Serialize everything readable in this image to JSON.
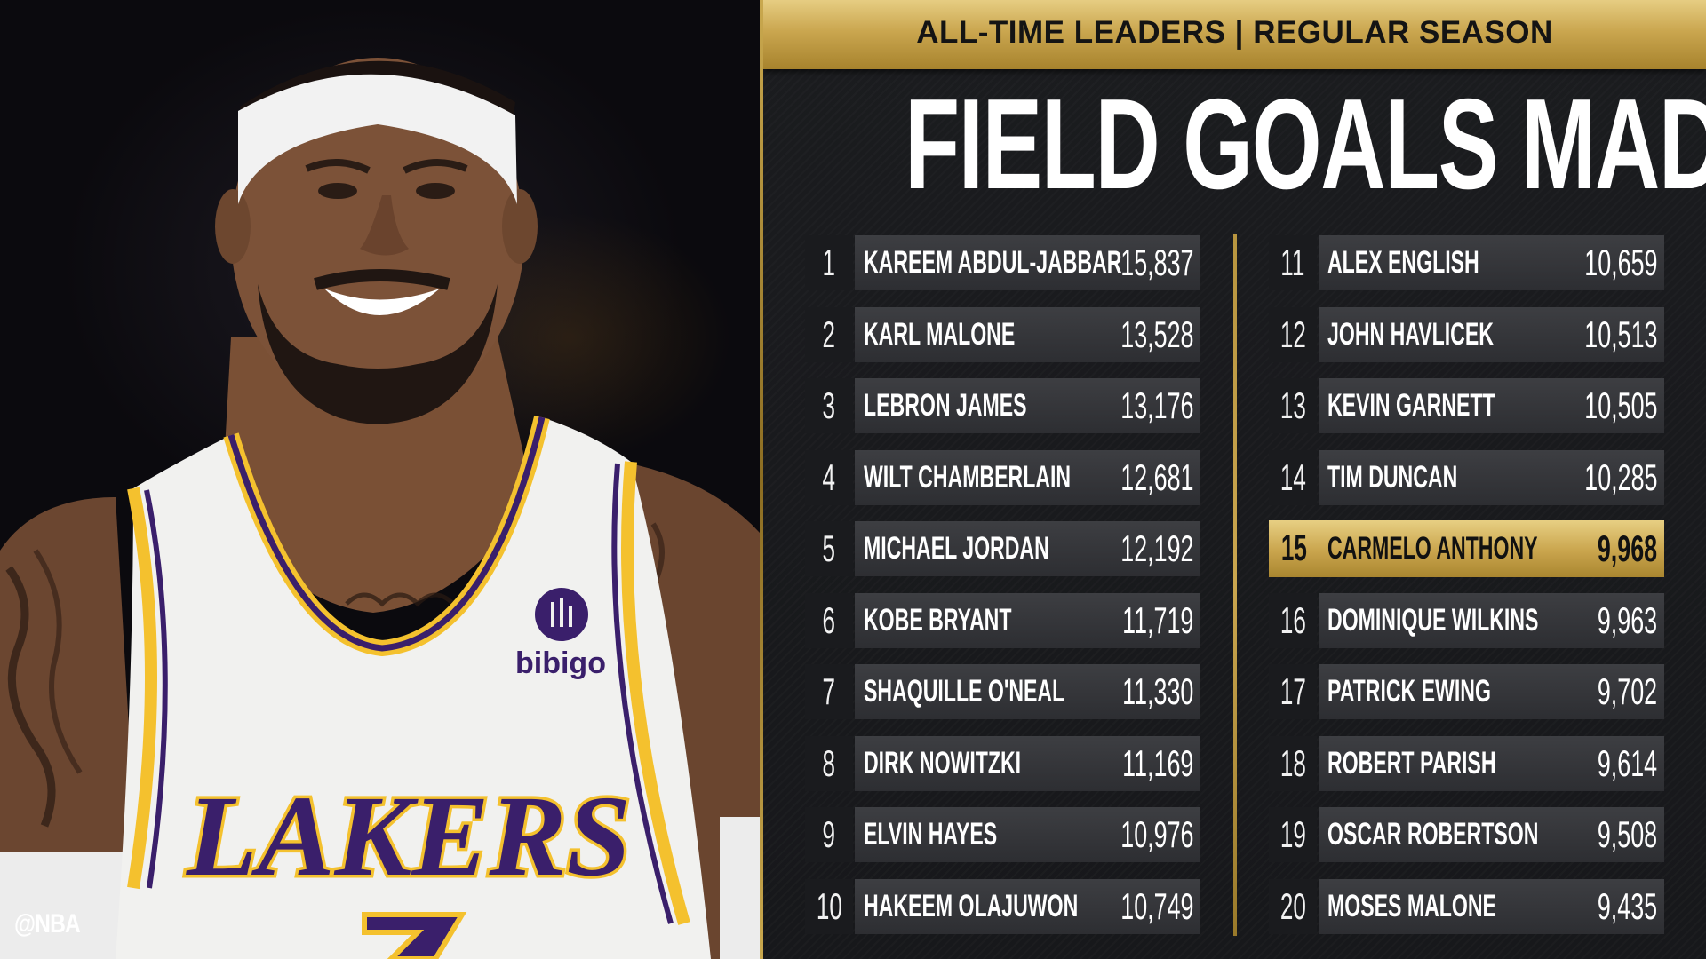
{
  "photo": {
    "watermark": "@NBA",
    "jersey_wordmark": "LAKERS",
    "sponsor_patch": "bibigo"
  },
  "header": {
    "banner": "ALL-TIME LEADERS | REGULAR SEASON",
    "title": "FIELD GOALS MADE"
  },
  "colors": {
    "gold": "#caa64f",
    "panel_background": "#1b1c1f",
    "row_bar": "#36373b",
    "text": "#ffffff",
    "jersey_purple": "#3a1f6b",
    "jersey_gold": "#f4c12e"
  },
  "leaders_left": [
    {
      "rank": "1",
      "name": "KAREEM ABDUL-JABBAR",
      "value": "15,837"
    },
    {
      "rank": "2",
      "name": "KARL MALONE",
      "value": "13,528"
    },
    {
      "rank": "3",
      "name": "LEBRON JAMES",
      "value": "13,176"
    },
    {
      "rank": "4",
      "name": "WILT CHAMBERLAIN",
      "value": "12,681"
    },
    {
      "rank": "5",
      "name": "MICHAEL JORDAN",
      "value": "12,192"
    },
    {
      "rank": "6",
      "name": "KOBE BRYANT",
      "value": "11,719"
    },
    {
      "rank": "7",
      "name": "SHAQUILLE O'NEAL",
      "value": "11,330"
    },
    {
      "rank": "8",
      "name": "DIRK NOWITZKI",
      "value": "11,169"
    },
    {
      "rank": "9",
      "name": "ELVIN HAYES",
      "value": "10,976"
    },
    {
      "rank": "10",
      "name": "HAKEEM OLAJUWON",
      "value": "10,749"
    }
  ],
  "leaders_right": [
    {
      "rank": "11",
      "name": "ALEX ENGLISH",
      "value": "10,659"
    },
    {
      "rank": "12",
      "name": "JOHN HAVLICEK",
      "value": "10,513"
    },
    {
      "rank": "13",
      "name": "KEVIN GARNETT",
      "value": "10,505"
    },
    {
      "rank": "14",
      "name": "TIM DUNCAN",
      "value": "10,285"
    },
    {
      "rank": "15",
      "name": "CARMELO ANTHONY",
      "value": "9,968",
      "highlighted": true
    },
    {
      "rank": "16",
      "name": "DOMINIQUE WILKINS",
      "value": "9,963"
    },
    {
      "rank": "17",
      "name": "PATRICK EWING",
      "value": "9,702"
    },
    {
      "rank": "18",
      "name": "ROBERT PARISH",
      "value": "9,614"
    },
    {
      "rank": "19",
      "name": "OSCAR ROBERTSON",
      "value": "9,508"
    },
    {
      "rank": "20",
      "name": "MOSES MALONE",
      "value": "9,435"
    }
  ]
}
